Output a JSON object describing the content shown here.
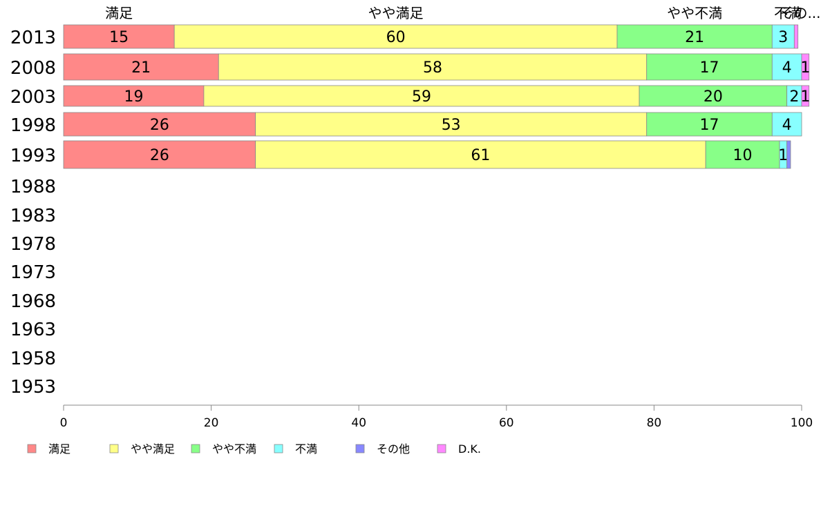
{
  "chart_data": {
    "type": "bar",
    "orientation": "horizontal",
    "stacked": true,
    "categories": [
      "2013",
      "2008",
      "2003",
      "1998",
      "1993",
      "1988",
      "1983",
      "1978",
      "1973",
      "1968",
      "1963",
      "1958",
      "1953"
    ],
    "series": [
      {
        "name": "満足",
        "color": "#ff8888",
        "values": [
          15,
          21,
          19,
          26,
          26,
          null,
          null,
          null,
          null,
          null,
          null,
          null,
          null
        ]
      },
      {
        "name": "やや満足",
        "color": "#ffff88",
        "values": [
          60,
          58,
          59,
          53,
          61,
          null,
          null,
          null,
          null,
          null,
          null,
          null,
          null
        ]
      },
      {
        "name": "やや不満",
        "color": "#88ff88",
        "values": [
          21,
          17,
          20,
          17,
          10,
          null,
          null,
          null,
          null,
          null,
          null,
          null,
          null
        ]
      },
      {
        "name": "不満",
        "color": "#88ffff",
        "values": [
          3,
          4,
          2,
          4,
          1,
          null,
          null,
          null,
          null,
          null,
          null,
          null,
          null
        ]
      },
      {
        "name": "その他",
        "color": "#8888ff",
        "values": [
          0,
          0,
          0,
          0,
          0.5,
          null,
          null,
          null,
          null,
          null,
          null,
          null,
          null
        ]
      },
      {
        "name": "D.K.",
        "color": "#ff88ff",
        "values": [
          0.5,
          1,
          1,
          0,
          0,
          null,
          null,
          null,
          null,
          null,
          null,
          null,
          null
        ]
      }
    ],
    "data_labels": [
      [
        "15",
        "60",
        "21",
        "3",
        "",
        ""
      ],
      [
        "21",
        "58",
        "17",
        "4",
        "",
        "1"
      ],
      [
        "19",
        "59",
        "20",
        "2",
        "",
        "1"
      ],
      [
        "26",
        "53",
        "17",
        "4",
        "",
        ""
      ],
      [
        "26",
        "61",
        "10",
        "1",
        "",
        ""
      ]
    ],
    "top_labels": [
      "満足",
      "やや満足",
      "やや不満",
      "不満",
      "その..."
    ],
    "x_ticks": [
      "0",
      "20",
      "40",
      "60",
      "80",
      "100"
    ],
    "xlim": [
      0,
      100
    ],
    "grid": false,
    "legend_position": "bottom"
  }
}
